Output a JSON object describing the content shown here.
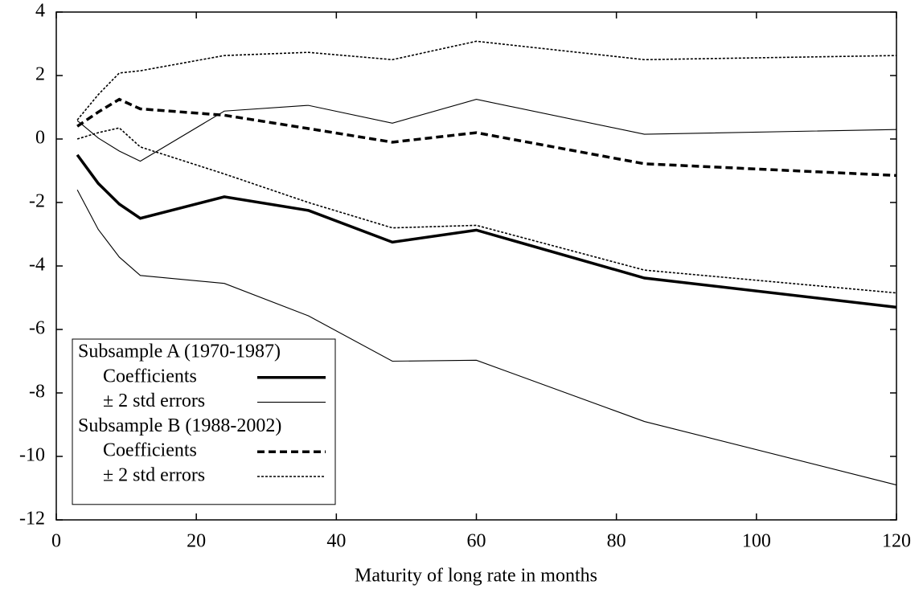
{
  "chart_data": {
    "type": "line",
    "x_label": "Maturity of long rate in months",
    "x": [
      3,
      6,
      9,
      12,
      24,
      36,
      48,
      60,
      84,
      120
    ],
    "xlim": [
      0,
      120
    ],
    "xticks": [
      0,
      20,
      40,
      60,
      80,
      100,
      120
    ],
    "ylim": [
      -12,
      4
    ],
    "yticks": [
      -12,
      -10,
      -8,
      -6,
      -4,
      -2,
      0,
      2,
      4
    ],
    "legend": "lower left",
    "groups": [
      {
        "name": "Subsample A (1970-1987)",
        "series": [
          {
            "name": "Coefficients",
            "style": "solid",
            "width": "thick",
            "color": "#000000",
            "values": [
              -0.5,
              -1.4,
              -2.05,
              -2.5,
              -1.82,
              -2.25,
              -3.25,
              -2.87,
              -4.38,
              -5.3
            ]
          },
          {
            "name": "± 2 std errors",
            "style": "solid",
            "width": "thin",
            "color": "#000000",
            "upper": [
              0.58,
              0.03,
              -0.38,
              -0.7,
              0.88,
              1.06,
              0.5,
              1.25,
              0.15,
              0.3
            ],
            "lower": [
              -1.6,
              -2.85,
              -3.72,
              -4.3,
              -4.55,
              -5.57,
              -7.0,
              -6.97,
              -8.9,
              -10.9
            ]
          }
        ]
      },
      {
        "name": "Subsample B (1988-2002)",
        "series": [
          {
            "name": "Coefficients",
            "style": "dashed",
            "width": "thick",
            "color": "#000000",
            "values": [
              0.4,
              0.85,
              1.25,
              0.95,
              0.75,
              0.33,
              -0.1,
              0.2,
              -0.78,
              -1.15
            ]
          },
          {
            "name": "± 2 std errors",
            "style": "dotted",
            "width": "thin",
            "color": "#000000",
            "upper": [
              0.6,
              1.4,
              2.08,
              2.15,
              2.63,
              2.73,
              2.5,
              3.08,
              2.5,
              2.63
            ],
            "lower": [
              0.0,
              0.2,
              0.35,
              -0.25,
              -1.1,
              -2.0,
              -2.8,
              -2.72,
              -4.13,
              -4.85
            ]
          }
        ]
      }
    ]
  }
}
